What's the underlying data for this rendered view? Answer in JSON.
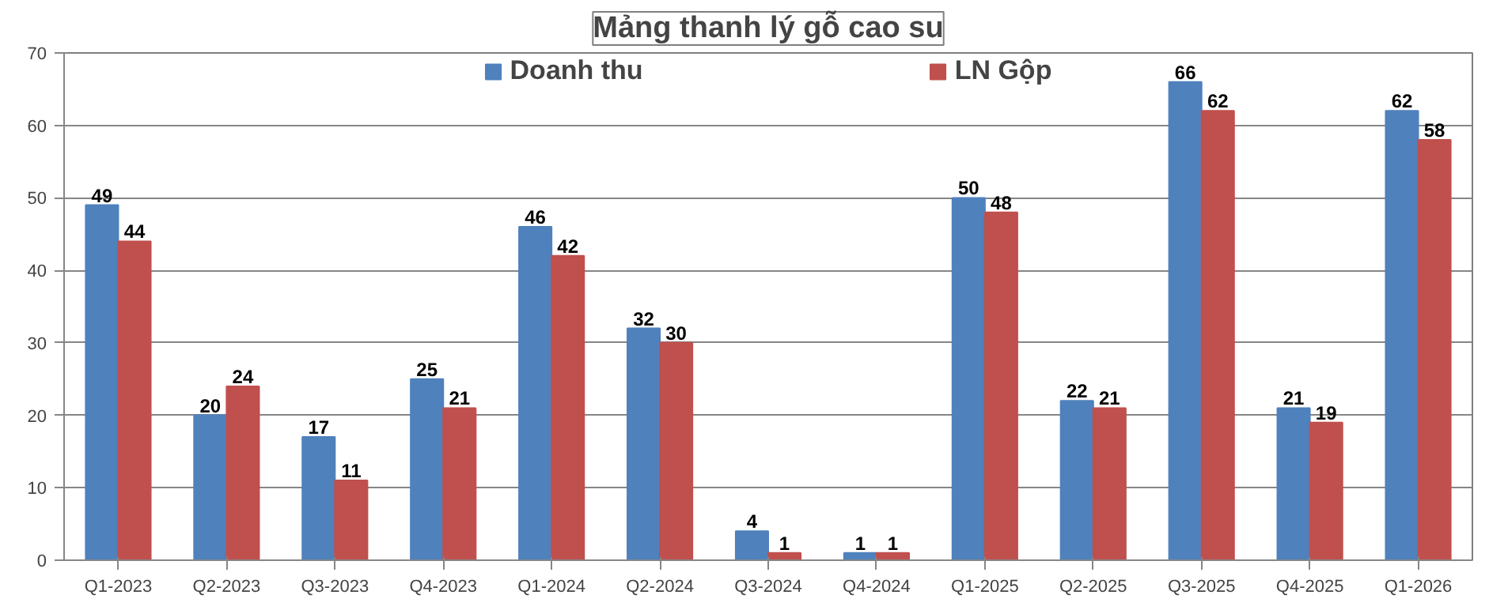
{
  "chart_data": {
    "type": "bar",
    "title": "Mảng thanh lý gỗ cao su",
    "categories": [
      "Q1-2023",
      "Q2-2023",
      "Q3-2023",
      "Q4-2023",
      "Q1-2024",
      "Q2-2024",
      "Q3-2024",
      "Q4-2024",
      "Q1-2025",
      "Q2-2025",
      "Q3-2025",
      "Q4-2025",
      "Q1-2026"
    ],
    "series": [
      {
        "name": "Doanh thu",
        "color": "#4f81bd",
        "values": [
          49,
          20,
          17,
          25,
          46,
          32,
          4,
          1,
          50,
          22,
          66,
          21,
          62
        ]
      },
      {
        "name": "LN Gộp",
        "color": "#c0504d",
        "values": [
          44,
          24,
          11,
          21,
          42,
          30,
          1,
          1,
          48,
          21,
          62,
          19,
          58
        ]
      }
    ],
    "ylim": [
      0,
      70
    ],
    "yticks": [
      0,
      10,
      20,
      30,
      40,
      50,
      60,
      70
    ],
    "grid": "y",
    "legend": "top",
    "data_labels": true
  }
}
